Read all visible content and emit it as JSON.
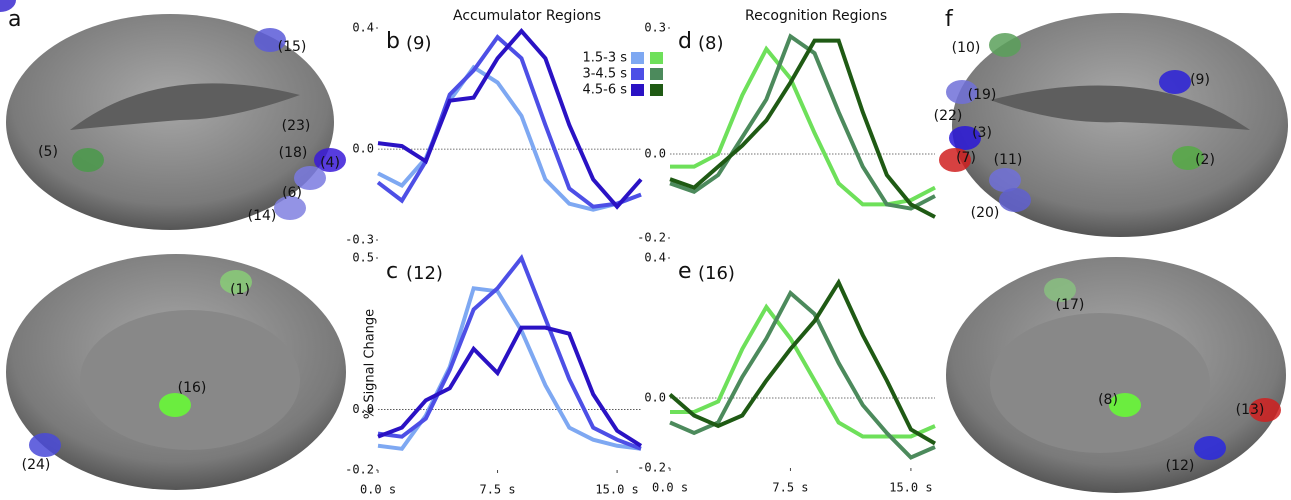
{
  "brain_panels": [
    {
      "panel": "a",
      "labels": [
        "(15)",
        "(23)",
        "(5)",
        "(18)",
        "(4)",
        "(6)",
        "(14)",
        "(1)",
        "(16)",
        "(24)"
      ]
    },
    {
      "panel": "f",
      "labels": [
        "(10)",
        "(9)",
        "(19)",
        "(22)",
        "(3)",
        "(2)",
        "(7)",
        "(11)",
        "(20)",
        "(17)",
        "(8)",
        "(13)",
        "(12)"
      ]
    }
  ],
  "chart_data": [
    {
      "type": "line",
      "panel": "b",
      "title": "(9)",
      "subtitle": "Accumulator Regions",
      "x": [
        0,
        1.5,
        3,
        4.5,
        6,
        7.5,
        9,
        10.5,
        12,
        13.5,
        15,
        16.5
      ],
      "xlim": [
        0,
        16.5
      ],
      "ylim": [
        -0.3,
        0.4
      ],
      "yticks": [
        -0.3,
        {
          "value": 0,
          "label": "0.0"
        },
        0.4
      ],
      "series": [
        {
          "name": "1.5-3 s",
          "color": "#7ea8f2",
          "values": [
            -0.08,
            -0.12,
            -0.03,
            0.16,
            0.27,
            0.22,
            0.11,
            -0.1,
            -0.18,
            -0.2,
            -0.18,
            -0.15
          ]
        },
        {
          "name": "3-4.5 s",
          "color": "#4d4fe6",
          "values": [
            -0.11,
            -0.17,
            -0.04,
            0.18,
            0.26,
            0.37,
            0.3,
            0.08,
            -0.13,
            -0.19,
            -0.18,
            -0.15
          ]
        },
        {
          "name": "4.5-6 s",
          "color": "#2a12c4",
          "values": [
            0.02,
            0.01,
            -0.04,
            0.16,
            0.17,
            0.3,
            0.39,
            0.3,
            0.08,
            -0.1,
            -0.19,
            -0.1
          ]
        }
      ]
    },
    {
      "type": "line",
      "panel": "d",
      "title": "(8)",
      "subtitle": "Recognition Regions",
      "x": [
        0,
        1.5,
        3,
        4.5,
        6,
        7.5,
        9,
        10.5,
        12,
        13.5,
        15,
        16.5
      ],
      "xlim": [
        0,
        16.5
      ],
      "ylim": [
        -0.2,
        0.3
      ],
      "yticks": [
        -0.2,
        {
          "value": 0,
          "label": "0.0"
        },
        0.3
      ],
      "series": [
        {
          "color": "#6ee05a",
          "values": [
            -0.03,
            -0.03,
            0,
            0.14,
            0.25,
            0.18,
            0.05,
            -0.07,
            -0.12,
            -0.12,
            -0.11,
            -0.08
          ]
        },
        {
          "color": "#4c8a5c",
          "values": [
            -0.07,
            -0.09,
            -0.05,
            0.04,
            0.13,
            0.28,
            0.24,
            0.1,
            -0.03,
            -0.12,
            -0.13,
            -0.1
          ]
        },
        {
          "color": "#1f5a14",
          "values": [
            -0.06,
            -0.08,
            -0.03,
            0.02,
            0.08,
            0.17,
            0.27,
            0.27,
            0.1,
            -0.05,
            -0.12,
            -0.15
          ]
        }
      ]
    },
    {
      "type": "line",
      "panel": "c",
      "title": "(12)",
      "ylabel": "% Signal Change",
      "x": [
        0,
        1.5,
        3,
        4.5,
        6,
        7.5,
        9,
        10.5,
        12,
        13.5,
        15,
        16.5
      ],
      "xlim": [
        0,
        16.5
      ],
      "xticks": [
        {
          "value": 0,
          "label": "0.0 s"
        },
        {
          "value": 7.5,
          "label": "7.5 s"
        },
        {
          "value": 15,
          "label": "15.0 s"
        }
      ],
      "ylim": [
        -0.2,
        0.5
      ],
      "yticks": [
        -0.2,
        {
          "value": 0,
          "label": "0.0"
        },
        0.5
      ],
      "series": [
        {
          "color": "#7ea8f2",
          "values": [
            -0.12,
            -0.13,
            -0.02,
            0.14,
            0.4,
            0.39,
            0.26,
            0.08,
            -0.06,
            -0.1,
            -0.12,
            -0.13
          ]
        },
        {
          "color": "#4d4fe6",
          "values": [
            -0.08,
            -0.09,
            -0.03,
            0.13,
            0.33,
            0.4,
            0.5,
            0.3,
            0.1,
            -0.06,
            -0.1,
            -0.13
          ]
        },
        {
          "color": "#2a12c4",
          "values": [
            -0.09,
            -0.06,
            0.03,
            0.07,
            0.2,
            0.12,
            0.27,
            0.27,
            0.25,
            0.05,
            -0.07,
            -0.12
          ]
        }
      ]
    },
    {
      "type": "line",
      "panel": "e",
      "title": "(16)",
      "x": [
        0,
        1.5,
        3,
        4.5,
        6,
        7.5,
        9,
        10.5,
        12,
        13.5,
        15,
        16.5
      ],
      "xlim": [
        0,
        16.5
      ],
      "xticks": [
        {
          "value": 0,
          "label": "0.0 s"
        },
        {
          "value": 7.5,
          "label": "7.5 s"
        },
        {
          "value": 15,
          "label": "15.0 s"
        }
      ],
      "ylim": [
        -0.2,
        0.4
      ],
      "yticks": [
        -0.2,
        {
          "value": 0,
          "label": "0.0"
        },
        0.4
      ],
      "series": [
        {
          "color": "#6ee05a",
          "values": [
            -0.04,
            -0.04,
            -0.01,
            0.14,
            0.26,
            0.17,
            0.05,
            -0.07,
            -0.11,
            -0.11,
            -0.11,
            -0.08
          ]
        },
        {
          "color": "#4c8a5c",
          "values": [
            -0.07,
            -0.1,
            -0.07,
            0.06,
            0.17,
            0.3,
            0.24,
            0.1,
            -0.02,
            -0.1,
            -0.17,
            -0.14
          ]
        },
        {
          "color": "#1f5a14",
          "values": [
            0.01,
            -0.05,
            -0.08,
            -0.05,
            0.05,
            0.14,
            0.22,
            0.33,
            0.18,
            0.05,
            -0.09,
            -0.13
          ]
        }
      ]
    }
  ]
}
